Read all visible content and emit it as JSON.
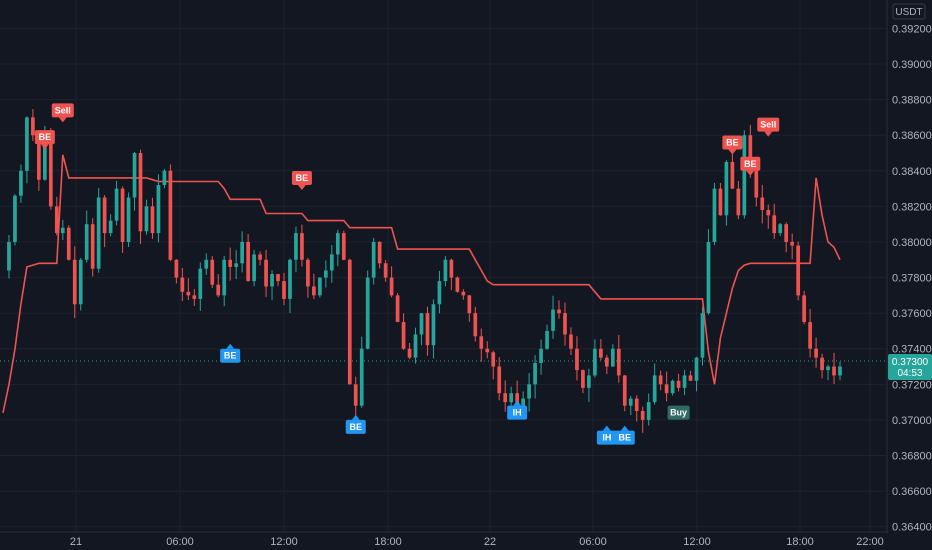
{
  "currency": "USDT",
  "current_price": "0.37300",
  "countdown": "04:53",
  "colors": {
    "background": "#131722",
    "grid": "#1e222d",
    "up": "#26a69a",
    "down": "#ef5350",
    "trail": "#ef5350",
    "sell_tag": "#ef5350",
    "buy_tag_blue": "#2196f3",
    "buy_tag_green": "#2f6b63",
    "price_badge": "#26a69a"
  },
  "chart_data": {
    "type": "candlestick",
    "title": "",
    "y_axis": {
      "ticks": [
        "0.39200",
        "0.39000",
        "0.38800",
        "0.38600",
        "0.38400",
        "0.38200",
        "0.38000",
        "0.37800",
        "0.37600",
        "0.37400",
        "0.37200",
        "0.37000",
        "0.36800",
        "0.36600",
        "0.36400"
      ],
      "range": [
        0.3637,
        0.3936
      ]
    },
    "x_axis": {
      "ticks": [
        "21",
        "06:00",
        "12:00",
        "18:00",
        "22",
        "06:00",
        "12:00",
        "18:00",
        "22:00"
      ]
    },
    "grid": true,
    "price_path": [
      0.3784,
      0.38,
      0.3826,
      0.384,
      0.387,
      0.386,
      0.3835,
      0.386,
      0.382,
      0.3805,
      0.3808,
      0.379,
      0.3765,
      0.379,
      0.381,
      0.3785,
      0.3825,
      0.3805,
      0.3812,
      0.383,
      0.38,
      0.3825,
      0.385,
      0.3806,
      0.382,
      0.3805,
      0.3832,
      0.384,
      0.379,
      0.378,
      0.3772,
      0.377,
      0.3768,
      0.3785,
      0.379,
      0.3776,
      0.377,
      0.379,
      0.3786,
      0.3788,
      0.38,
      0.3778,
      0.3793,
      0.379,
      0.3775,
      0.3782,
      0.3778,
      0.3768,
      0.379,
      0.3805,
      0.379,
      0.3775,
      0.377,
      0.378,
      0.3784,
      0.3793,
      0.3805,
      0.379,
      0.372,
      0.3708,
      0.374,
      0.378,
      0.38,
      0.3788,
      0.378,
      0.377,
      0.3755,
      0.374,
      0.3735,
      0.3748,
      0.376,
      0.3742,
      0.3765,
      0.3778,
      0.379,
      0.378,
      0.3772,
      0.377,
      0.376,
      0.3747,
      0.374,
      0.3738,
      0.373,
      0.3715,
      0.371,
      0.3715,
      0.3708,
      0.3712,
      0.372,
      0.3732,
      0.374,
      0.375,
      0.3762,
      0.376,
      0.3748,
      0.374,
      0.3728,
      0.3718,
      0.3725,
      0.374,
      0.3735,
      0.373,
      0.374,
      0.3725,
      0.3708,
      0.3712,
      0.3705,
      0.37,
      0.371,
      0.3725,
      0.372,
      0.3715,
      0.3722,
      0.3718,
      0.3725,
      0.3722,
      0.3735,
      0.376,
      0.38,
      0.383,
      0.3815,
      0.3845,
      0.383,
      0.3815,
      0.386,
      0.384,
      0.3825,
      0.3818,
      0.3815,
      0.3805,
      0.381,
      0.38,
      0.3798,
      0.377,
      0.3755,
      0.374,
      0.3735,
      0.3728,
      0.373,
      0.3725,
      0.373
    ],
    "series": [
      {
        "values": [
          0.3704,
          0.372,
          0.374,
          0.3765,
          0.3786,
          0.3787,
          0.3788,
          0.3788,
          0.3788,
          0.3788,
          0.3849,
          0.3836,
          0.3836,
          0.3836,
          0.3836,
          0.3836,
          0.3836,
          0.3836,
          0.3836,
          0.3836,
          0.3836,
          0.3836,
          0.3836,
          0.3836,
          0.3836,
          0.3835,
          0.3834,
          0.3834,
          0.3834,
          0.3834,
          0.3834,
          0.3834,
          0.3834,
          0.3834,
          0.3834,
          0.3834,
          0.3834,
          0.383,
          0.3824,
          0.3824,
          0.3824,
          0.3824,
          0.3824,
          0.3824,
          0.3816,
          0.3816,
          0.3816,
          0.3816,
          0.3816,
          0.3816,
          0.3816,
          0.3812,
          0.3812,
          0.3812,
          0.3812,
          0.3812,
          0.3812,
          0.3812,
          0.3808,
          0.3808,
          0.3808,
          0.3808,
          0.3808,
          0.3808,
          0.3808,
          0.3808,
          0.3796,
          0.3796,
          0.3796,
          0.3796,
          0.3796,
          0.3796,
          0.3796,
          0.3796,
          0.3796,
          0.3796,
          0.3796,
          0.3796,
          0.3796,
          0.379,
          0.3784,
          0.3778,
          0.3776,
          0.3776,
          0.3776,
          0.3776,
          0.3776,
          0.3776,
          0.3776,
          0.3776,
          0.3776,
          0.3776,
          0.3776,
          0.3776,
          0.3776,
          0.3776,
          0.3776,
          0.3776,
          0.3776,
          0.3772,
          0.3768,
          0.3768,
          0.3768,
          0.3768,
          0.3768,
          0.3768,
          0.3768,
          0.3768,
          0.3768,
          0.3768,
          0.3768,
          0.3768,
          0.3768,
          0.3768,
          0.3768,
          0.3768,
          0.3768,
          0.3768,
          0.3738,
          0.372,
          0.3746,
          0.376,
          0.3774,
          0.3784,
          0.3787,
          0.3788,
          0.3788,
          0.3788,
          0.3788,
          0.3788,
          0.3788,
          0.3788,
          0.3788,
          0.3788,
          0.3788,
          0.3788,
          0.3836,
          0.3815,
          0.38,
          0.3797,
          0.379
        ]
      }
    ],
    "signals": [
      {
        "label": "Sell",
        "kind": "sell",
        "x_index": 10,
        "price": 0.387
      },
      {
        "label": "BE",
        "kind": "sell",
        "x_index": 7,
        "price": 0.3855
      },
      {
        "label": "BE",
        "kind": "buy",
        "x_index": 38,
        "price": 0.374
      },
      {
        "label": "BE",
        "kind": "sell",
        "x_index": 50,
        "price": 0.3832
      },
      {
        "label": "BE",
        "kind": "buy",
        "x_index": 59,
        "price": 0.37
      },
      {
        "label": "IH",
        "kind": "buy",
        "x_index": 86,
        "price": 0.3708
      },
      {
        "label": "IH",
        "kind": "buy",
        "x_index": 101,
        "price": 0.3694
      },
      {
        "label": "BE",
        "kind": "buy",
        "x_index": 104,
        "price": 0.3694
      },
      {
        "label": "Buy",
        "kind": "buy-green",
        "x_index": 113,
        "price": 0.3708
      },
      {
        "label": "BE",
        "kind": "sell",
        "x_index": 122,
        "price": 0.3852
      },
      {
        "label": "Sell",
        "kind": "sell",
        "x_index": 128,
        "price": 0.3862
      },
      {
        "label": "BE",
        "kind": "sell",
        "x_index": 125,
        "price": 0.384
      }
    ]
  }
}
